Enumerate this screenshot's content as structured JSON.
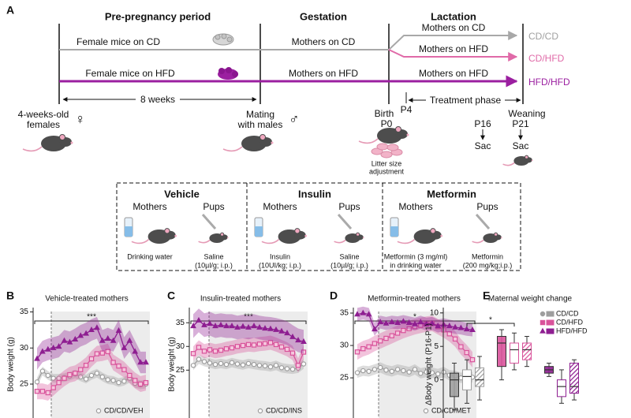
{
  "diagram": {
    "panel": "A",
    "phases": [
      "Pre-pregnancy period",
      "Gestation",
      "Lactation"
    ],
    "cd_row": {
      "pre": "Female mice on CD",
      "gestation": "Mothers on CD"
    },
    "hfd_row": {
      "pre": "Female mice on HFD",
      "gestation": "Mothers on HFD"
    },
    "lactation": [
      "Mothers on CD",
      "Mothers on HFD",
      "Mothers on HFD"
    ],
    "groups": [
      "CD/CD",
      "CD/HFD",
      "HFD/HFD"
    ],
    "duration": "8 weeks",
    "start": [
      "4-weeks-old",
      "females"
    ],
    "female": "♀",
    "mating": [
      "Mating",
      "with males"
    ],
    "male": "♂",
    "birth": [
      "Birth",
      "P0"
    ],
    "p4": "P4",
    "treatment": "Treatment phase",
    "litter": [
      "Litter size",
      "adjustment"
    ],
    "weaning": [
      "Weaning",
      "P21"
    ],
    "p16": "P16",
    "sac": [
      "Sac",
      "Sac"
    ],
    "treatments": [
      {
        "title": "Vehicle",
        "mothers": "Mothers",
        "pups": "Pups",
        "mother_dose": [
          "Drinking water"
        ],
        "pup_dose": [
          "Saline",
          "(10µl/g; i.p.)"
        ]
      },
      {
        "title": "Insulin",
        "mothers": "Mothers",
        "pups": "Pups",
        "mother_dose": [
          "Insulin",
          "(10UI/kg; i.p.)"
        ],
        "pup_dose": [
          "Saline",
          "(10µl/g; i.p.)"
        ]
      },
      {
        "title": "Metformin",
        "mothers": "Mothers",
        "pups": "Pups",
        "mother_dose": [
          "Metformin (3 mg/ml)",
          "in drinking water"
        ],
        "pup_dose": [
          "Metformin",
          "(200 mg/kg;i.p.)"
        ]
      }
    ]
  },
  "chart_data": [
    {
      "type": "line",
      "panel": "B",
      "title": "Vehicle-treated mothers",
      "ylabel": "Body weight (g)",
      "annotation": "***",
      "categories": [
        null,
        null,
        null,
        null,
        null,
        null,
        null,
        null,
        null,
        null,
        null,
        null,
        null,
        null,
        null,
        null,
        null,
        null,
        null,
        null,
        null
      ],
      "ylim": [
        20.3,
        35.6
      ],
      "yticks": [
        25,
        30,
        35
      ],
      "series": [
        {
          "name": "CD/CD/VEH",
          "color": "#9e9e9e",
          "marker": "circle",
          "values": [
            25.3,
            26.8,
            26.2,
            25.8,
            25.8,
            25.9,
            26.1,
            26.4,
            26.0,
            25.7,
            26.2,
            26.5,
            26.0,
            25.6,
            25.5,
            25.2,
            25.4,
            25.8,
            25.1,
            24.9,
            25.0
          ],
          "errors": [
            0.6,
            0.6,
            0.6,
            0.6,
            0.6,
            0.6,
            0.6,
            0.6,
            0.6,
            0.6,
            0.6,
            0.6,
            0.6,
            0.6,
            0.6,
            0.6,
            0.6,
            0.6,
            0.6,
            0.6,
            0.6
          ]
        },
        {
          "color": "#d9539b",
          "marker": "square",
          "values": [
            24.0,
            24.0,
            23.8,
            24.5,
            25.2,
            25.8,
            26.3,
            26.5,
            27.0,
            27.6,
            28.5,
            29.2,
            29.3,
            29.5,
            28.0,
            27.5,
            27.0,
            26.2,
            25.5,
            25.0,
            25.2
          ],
          "errors": [
            1.1,
            1.1,
            1.1,
            1.1,
            1.1,
            1.1,
            1.1,
            1.1,
            1.1,
            1.1,
            1.1,
            1.1,
            1.1,
            1.1,
            1.1,
            1.1,
            1.1,
            1.1,
            1.1,
            1.1,
            1.1
          ]
        },
        {
          "color": "#8e1e91",
          "marker": "triangle",
          "values": [
            28.5,
            29.5,
            29.8,
            30.0,
            30.2,
            31.0,
            30.8,
            31.2,
            31.7,
            32.0,
            32.5,
            32.8,
            31.0,
            31.3,
            31.0,
            32.4,
            30.0,
            31.0,
            29.5,
            28.0,
            28.0
          ],
          "errors": [
            1.5,
            1.5,
            1.5,
            1.5,
            1.5,
            1.5,
            1.5,
            1.5,
            1.5,
            1.5,
            1.5,
            1.5,
            1.5,
            1.5,
            1.5,
            1.5,
            1.5,
            1.5,
            1.5,
            1.5,
            1.5
          ]
        }
      ]
    },
    {
      "type": "line",
      "panel": "C",
      "title": "Insulin-treated mothers",
      "ylabel": "Body weight (g)",
      "annotation": "***",
      "categories": [
        null,
        null,
        null,
        null,
        null,
        null,
        null,
        null,
        null,
        null,
        null,
        null,
        null,
        null,
        null,
        null,
        null,
        null,
        null,
        null,
        null
      ],
      "ylim": [
        14.9,
        38.2
      ],
      "yticks": [
        25,
        30,
        35
      ],
      "series": [
        {
          "name": "CD/CD/INS",
          "color": "#9e9e9e",
          "marker": "circle",
          "values": [
            26.0,
            27.3,
            26.8,
            26.5,
            26.2,
            26.4,
            26.2,
            26.6,
            26.3,
            26.1,
            26.4,
            26.2,
            26.0,
            25.9,
            25.7,
            26.0,
            25.5,
            25.3,
            25.2,
            25.4,
            26.3
          ],
          "errors": [
            1.0,
            1.0,
            1.0,
            1.0,
            1.0,
            1.0,
            1.0,
            1.0,
            1.0,
            1.0,
            1.0,
            1.0,
            1.0,
            1.0,
            1.0,
            1.0,
            1.0,
            1.0,
            1.0,
            1.0,
            1.0
          ]
        },
        {
          "color": "#d9539b",
          "marker": "square",
          "values": [
            28.5,
            29.8,
            29.0,
            29.3,
            29.0,
            29.2,
            29.5,
            29.7,
            30.0,
            30.2,
            30.4,
            30.3,
            30.5,
            30.6,
            30.8,
            30.4,
            29.9,
            29.4,
            28.6,
            26.0,
            28.8
          ],
          "errors": [
            1.5,
            1.5,
            1.5,
            1.5,
            1.5,
            1.5,
            1.5,
            1.5,
            1.5,
            1.5,
            1.5,
            1.5,
            1.5,
            1.5,
            1.5,
            1.5,
            1.5,
            1.5,
            1.5,
            1.5,
            1.5
          ]
        },
        {
          "color": "#8e1e91",
          "marker": "triangle",
          "values": [
            34.3,
            35.5,
            34.5,
            34.8,
            34.3,
            34.5,
            34.3,
            34.3,
            34.0,
            34.2,
            34.0,
            34.3,
            34.0,
            33.8,
            33.7,
            33.5,
            33.2,
            32.8,
            32.0,
            31.3,
            31.0
          ],
          "errors": [
            2.5,
            2.5,
            2.5,
            2.5,
            2.5,
            2.5,
            2.5,
            2.5,
            2.5,
            2.5,
            2.5,
            2.5,
            2.5,
            2.5,
            2.5,
            2.5,
            2.5,
            2.5,
            2.5,
            2.5,
            2.5
          ]
        }
      ]
    },
    {
      "type": "line",
      "panel": "D",
      "title": "Metformin-treated mothers",
      "annotation": "*",
      "categories": [
        null,
        null,
        null,
        null,
        null,
        null,
        null,
        null,
        null,
        null,
        null,
        null,
        null,
        null,
        null,
        null,
        null,
        null,
        null,
        null,
        null
      ],
      "ylim": [
        18.8,
        35.85
      ],
      "yticks": [
        25,
        30,
        35
      ],
      "series": [
        {
          "name": "CD/CD/MET",
          "color": "#9e9e9e",
          "marker": "circle",
          "values": [
            25.8,
            26.1,
            26.0,
            26.3,
            26.6,
            26.2,
            26.0,
            26.3,
            26.1,
            25.9,
            26.3,
            25.7,
            25.9,
            25.8,
            25.6,
            25.9,
            25.4,
            25.3,
            25.0,
            25.2,
            25.1
          ],
          "errors": [
            0.8,
            0.8,
            0.8,
            0.8,
            0.8,
            0.8,
            0.8,
            0.8,
            0.8,
            0.8,
            0.8,
            0.8,
            0.8,
            0.8,
            0.8,
            0.8,
            0.8,
            0.8,
            0.8,
            0.8,
            0.8
          ]
        },
        {
          "color": "#d9539b",
          "marker": "square",
          "values": [
            29.0,
            29.5,
            29.8,
            30.3,
            30.7,
            31.1,
            31.5,
            31.9,
            32.3,
            32.6,
            32.9,
            33.1,
            33.3,
            33.4,
            32.9,
            32.4,
            31.8,
            31.0,
            29.8,
            28.9,
            27.8
          ],
          "errors": [
            1.2,
            1.2,
            1.2,
            1.2,
            1.2,
            1.2,
            1.2,
            1.2,
            1.2,
            1.2,
            1.2,
            1.2,
            1.2,
            1.2,
            1.2,
            1.2,
            1.2,
            1.2,
            1.2,
            1.2,
            1.2
          ]
        },
        {
          "color": "#8e1e91",
          "marker": "triangle",
          "values": [
            34.8,
            35.0,
            34.8,
            32.5,
            33.6,
            33.4,
            33.6,
            33.5,
            33.7,
            33.5,
            33.3,
            33.6,
            33.3,
            33.4,
            33.0,
            33.2,
            33.0,
            32.8,
            32.7,
            32.5,
            32.4
          ],
          "errors": [
            1.0,
            1.0,
            1.0,
            1.0,
            1.0,
            1.0,
            1.0,
            1.0,
            1.0,
            1.0,
            1.0,
            1.0,
            1.0,
            1.0,
            1.0,
            1.0,
            1.0,
            1.0,
            1.0,
            1.0,
            1.0
          ]
        }
      ]
    },
    {
      "type": "box",
      "panel": "E",
      "title": "Maternal weight change",
      "ylabel": "ΔBody weight (P16-P1)",
      "annotation": "*",
      "ylim": [
        -5.7,
        10.8
      ],
      "yticks": [
        0,
        5,
        10
      ],
      "series": [
        {
          "name": "CD/CD",
          "color": "#9e9e9e",
          "marker": "circle",
          "boxes": [
            {
              "pattern": "solid",
              "min": -4.5,
              "q1": -2.5,
              "median": 0,
              "q3": 1,
              "max": 2.5
            },
            {
              "pattern": "light",
              "min": -3.5,
              "q1": -1.5,
              "median": 0.5,
              "q3": 1.5,
              "max": 3
            },
            {
              "pattern": "hatched",
              "min": -3,
              "q1": -1,
              "median": 0,
              "q3": 1.8,
              "max": 3.5
            }
          ]
        },
        {
          "name": "CD/HFD",
          "color": "#d9539b",
          "marker": "square",
          "boxes": [
            {
              "pattern": "solid",
              "min": 0,
              "q1": 2,
              "median": 5.5,
              "q3": 6.5,
              "max": 7.5
            },
            {
              "pattern": "light",
              "min": 1.5,
              "q1": 2.5,
              "median": 4.5,
              "q3": 5.5,
              "max": 7
            },
            {
              "pattern": "hatched",
              "min": 2,
              "q1": 3,
              "median": 4.5,
              "q3": 5.5,
              "max": 6.5
            }
          ]
        },
        {
          "name": "HFD/HFD",
          "color": "#8e1e91",
          "marker": "triangle",
          "boxes": [
            {
              "pattern": "solid",
              "min": 0.5,
              "q1": 1,
              "median": 1.5,
              "q3": 2,
              "max": 2.5
            },
            {
              "pattern": "light",
              "min": -3.5,
              "q1": -2.5,
              "median": -1,
              "q3": 0,
              "max": 1.5
            },
            {
              "pattern": "hatched",
              "min": -3,
              "q1": -2,
              "median": -1,
              "q3": 2.5,
              "max": 3
            }
          ]
        }
      ]
    }
  ]
}
